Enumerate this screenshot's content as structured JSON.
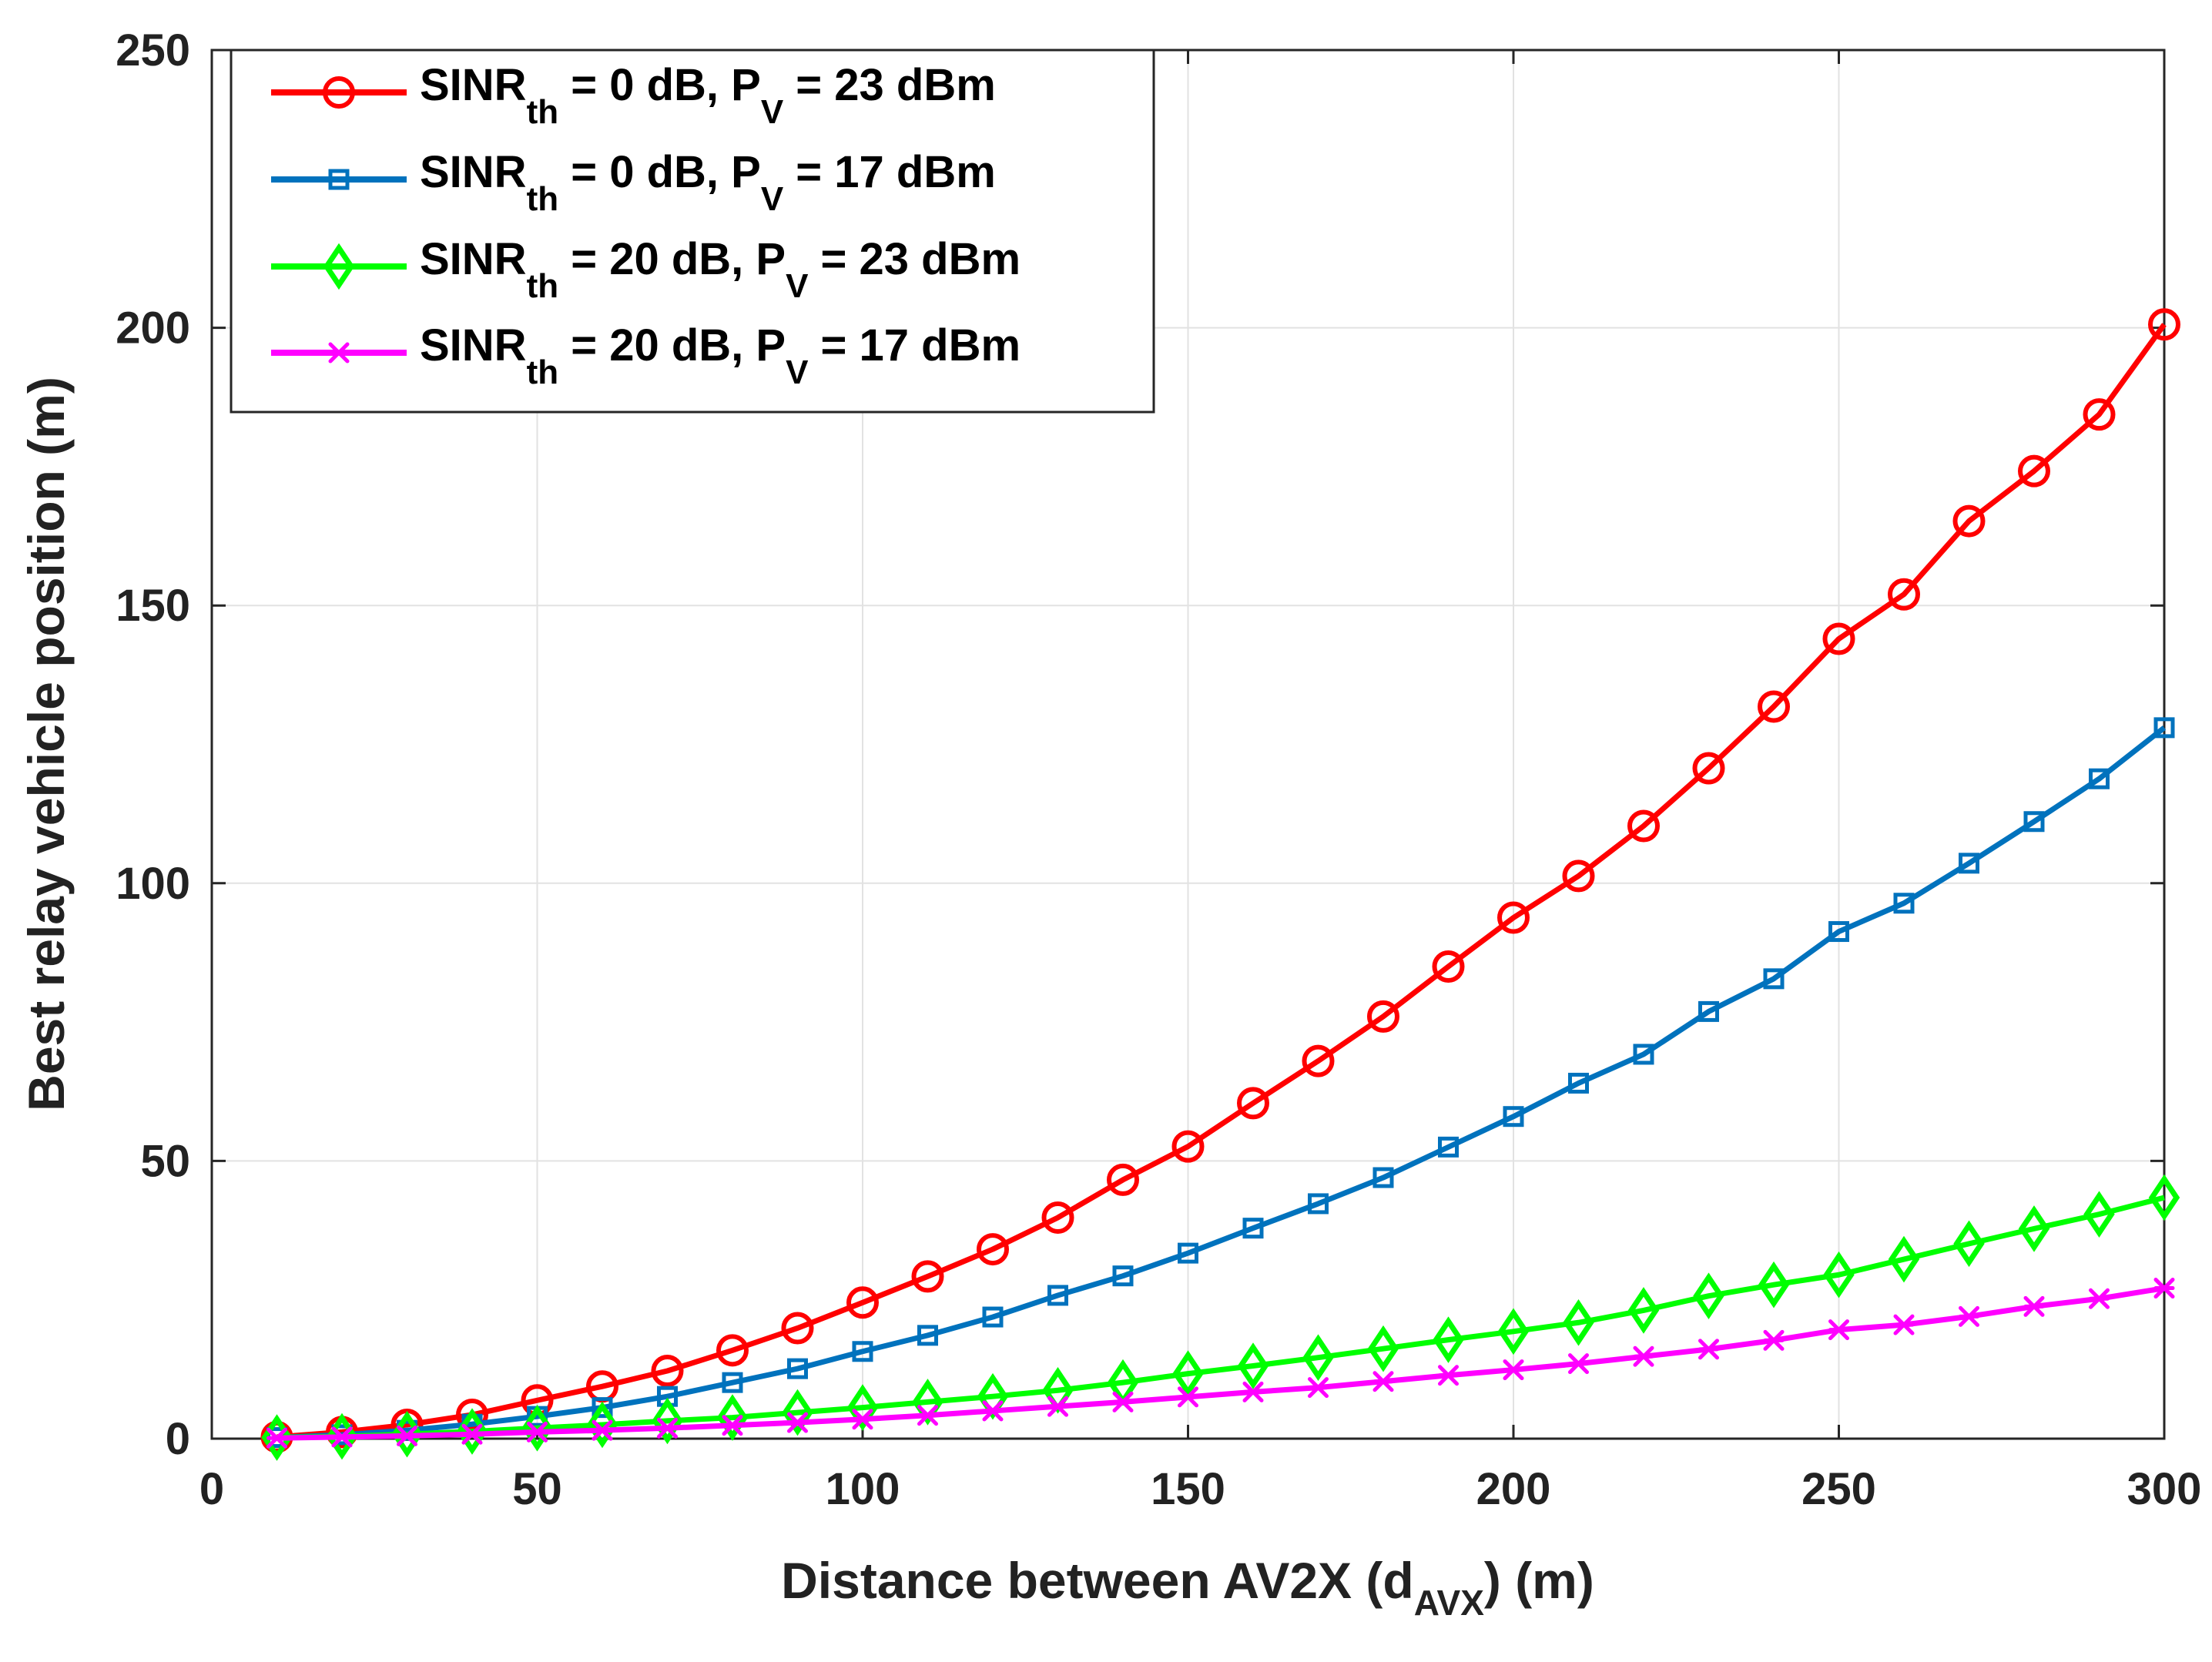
{
  "chart_data": {
    "type": "line",
    "xlabel": "Distance between AV2X  (d",
    "xlabel_sub": "AVX",
    "xlabel_tail": ") (m)",
    "ylabel": "Best relay vehicle position  (m)",
    "xlim": [
      0,
      300
    ],
    "ylim": [
      0,
      250
    ],
    "xticks": [
      0,
      50,
      100,
      150,
      200,
      250,
      300
    ],
    "yticks": [
      0,
      50,
      100,
      150,
      200,
      250
    ],
    "grid": true,
    "legend_position": "top-left",
    "x": [
      10,
      20,
      30,
      40,
      50,
      60,
      70,
      80,
      90,
      100,
      110,
      120,
      130,
      140,
      150,
      160,
      170,
      180,
      190,
      200,
      210,
      220,
      230,
      240,
      250,
      260,
      270,
      280,
      290,
      300
    ],
    "series": [
      {
        "name": "SINRth = 0 dB, PV = 23 dBm",
        "legend_parts": [
          "SINR",
          "th",
          " = 0 dB, P",
          "V",
          " = 23 dBm"
        ],
        "color": "#ff0000",
        "marker": "circle",
        "values": [
          0.3,
          1.2,
          2.5,
          4.3,
          6.9,
          9.4,
          12.2,
          15.9,
          19.9,
          24.5,
          29.2,
          34.1,
          39.8,
          46.6,
          52.6,
          60.4,
          68.0,
          76.0,
          85.0,
          93.8,
          101.3,
          110.3,
          120.7,
          131.8,
          144.0,
          152.0,
          165.2,
          174.2,
          184.4,
          200.6
        ]
      },
      {
        "name": "SINRth = 0 dB, PV = 17 dBm",
        "legend_parts": [
          "SINR",
          "th",
          "  = 0 dB, P",
          "V",
          " = 17 dBm"
        ],
        "color": "#0072bd",
        "marker": "square",
        "values": [
          0.2,
          0.7,
          1.5,
          2.6,
          4.0,
          5.6,
          7.6,
          10.1,
          12.6,
          15.7,
          18.6,
          21.9,
          25.8,
          29.3,
          33.4,
          37.9,
          42.3,
          47.0,
          52.5,
          58.0,
          64.0,
          69.2,
          76.9,
          82.8,
          91.3,
          96.4,
          103.6,
          111.1,
          118.8,
          128.0
        ]
      },
      {
        "name": "SINRth = 20 dB, PV = 23 dBm",
        "legend_parts": [
          "SINR",
          "th",
          " = 20 dB, P",
          "V",
          " = 23 dBm"
        ],
        "color": "#00ff00",
        "marker": "diamond",
        "values": [
          0.2,
          0.4,
          0.8,
          1.3,
          1.9,
          2.5,
          3.2,
          3.8,
          4.7,
          5.6,
          6.6,
          7.6,
          8.7,
          10.1,
          11.7,
          13.1,
          14.6,
          16.2,
          17.8,
          19.3,
          20.9,
          23.1,
          25.7,
          27.7,
          29.5,
          32.3,
          35.1,
          37.8,
          40.4,
          43.4
        ]
      },
      {
        "name": "SINRth = 20 dB, PV = 17 dBm",
        "legend_parts": [
          "SINR",
          "th",
          "  = 20 dB, P",
          "V",
          " = 17 dBm"
        ],
        "color": "#ff00ff",
        "marker": "asterisk",
        "values": [
          0.1,
          0.3,
          0.5,
          0.8,
          1.2,
          1.5,
          1.9,
          2.4,
          2.9,
          3.5,
          4.2,
          5.0,
          5.8,
          6.6,
          7.5,
          8.4,
          9.2,
          10.3,
          11.4,
          12.4,
          13.5,
          14.8,
          16.1,
          17.7,
          19.6,
          20.5,
          22.0,
          23.8,
          25.2,
          27.1
        ]
      }
    ]
  }
}
